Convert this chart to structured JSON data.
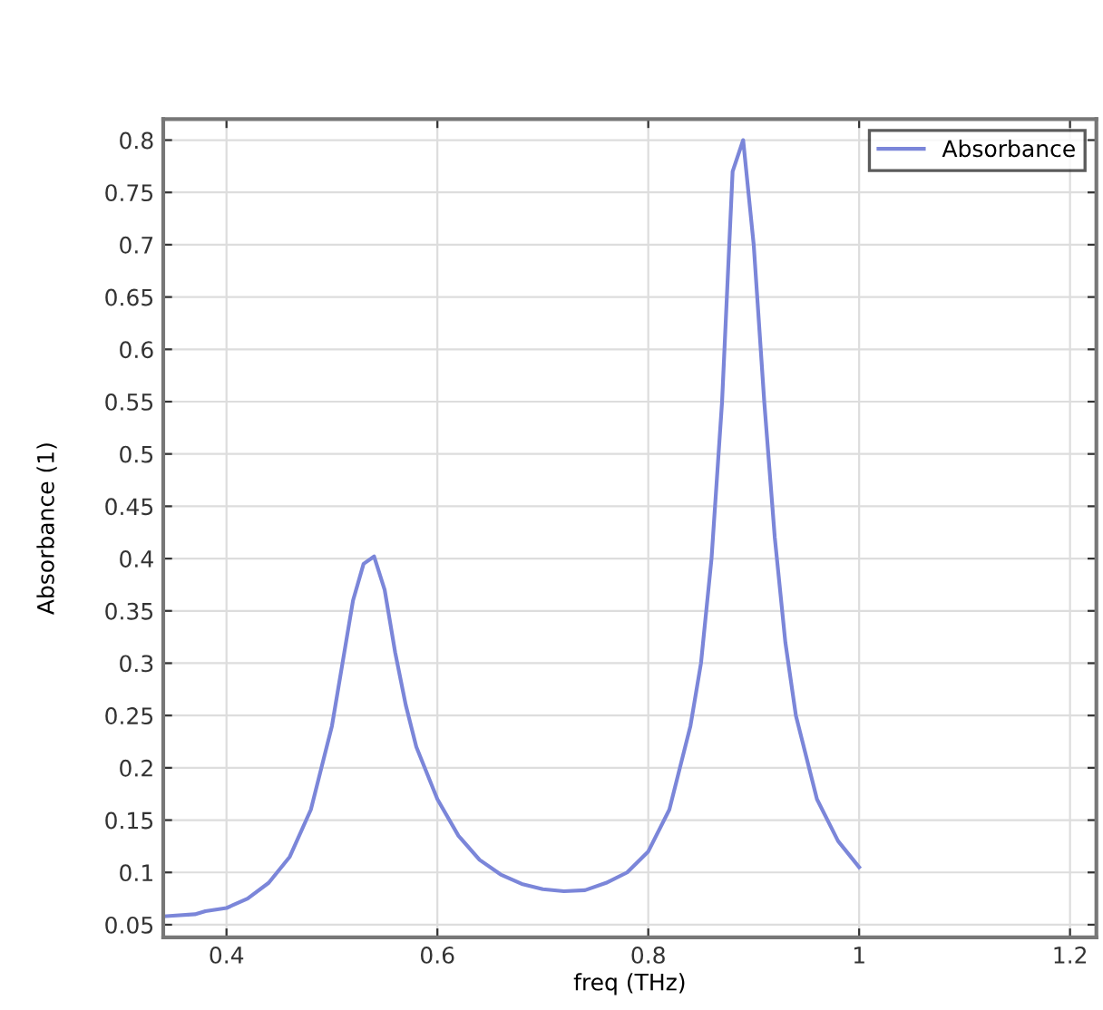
{
  "chart_data": {
    "type": "line",
    "xlabel": "freq (THz)",
    "ylabel": "Absorbance (1)",
    "xlim": [
      0.34,
      1.225
    ],
    "ylim": [
      0.038,
      0.82
    ],
    "xticks": [
      0.4,
      0.6,
      0.8,
      1,
      1.2
    ],
    "yticks": [
      0.05,
      0.1,
      0.15,
      0.2,
      0.25,
      0.3,
      0.35,
      0.4,
      0.45,
      0.5,
      0.55,
      0.6,
      0.65,
      0.7,
      0.75,
      0.8
    ],
    "grid": true,
    "legend": "top right",
    "marker": "none",
    "line_style": "solid",
    "series": [
      {
        "name": "Absorbance",
        "color": "#7b86d9",
        "x": [
          0.34,
          0.37,
          0.38,
          0.4,
          0.42,
          0.44,
          0.46,
          0.48,
          0.5,
          0.51,
          0.52,
          0.53,
          0.54,
          0.55,
          0.56,
          0.57,
          0.58,
          0.6,
          0.62,
          0.64,
          0.66,
          0.68,
          0.7,
          0.72,
          0.74,
          0.76,
          0.78,
          0.8,
          0.82,
          0.84,
          0.85,
          0.86,
          0.87,
          0.88,
          0.89,
          0.9,
          0.91,
          0.92,
          0.93,
          0.94,
          0.96,
          0.98,
          1.0
        ],
        "values": [
          0.058,
          0.06,
          0.063,
          0.066,
          0.075,
          0.09,
          0.115,
          0.16,
          0.24,
          0.3,
          0.36,
          0.395,
          0.402,
          0.37,
          0.31,
          0.26,
          0.22,
          0.17,
          0.135,
          0.112,
          0.098,
          0.089,
          0.084,
          0.082,
          0.083,
          0.09,
          0.1,
          0.12,
          0.16,
          0.24,
          0.3,
          0.4,
          0.55,
          0.77,
          0.8,
          0.7,
          0.55,
          0.42,
          0.32,
          0.25,
          0.17,
          0.13,
          0.105
        ]
      }
    ]
  }
}
